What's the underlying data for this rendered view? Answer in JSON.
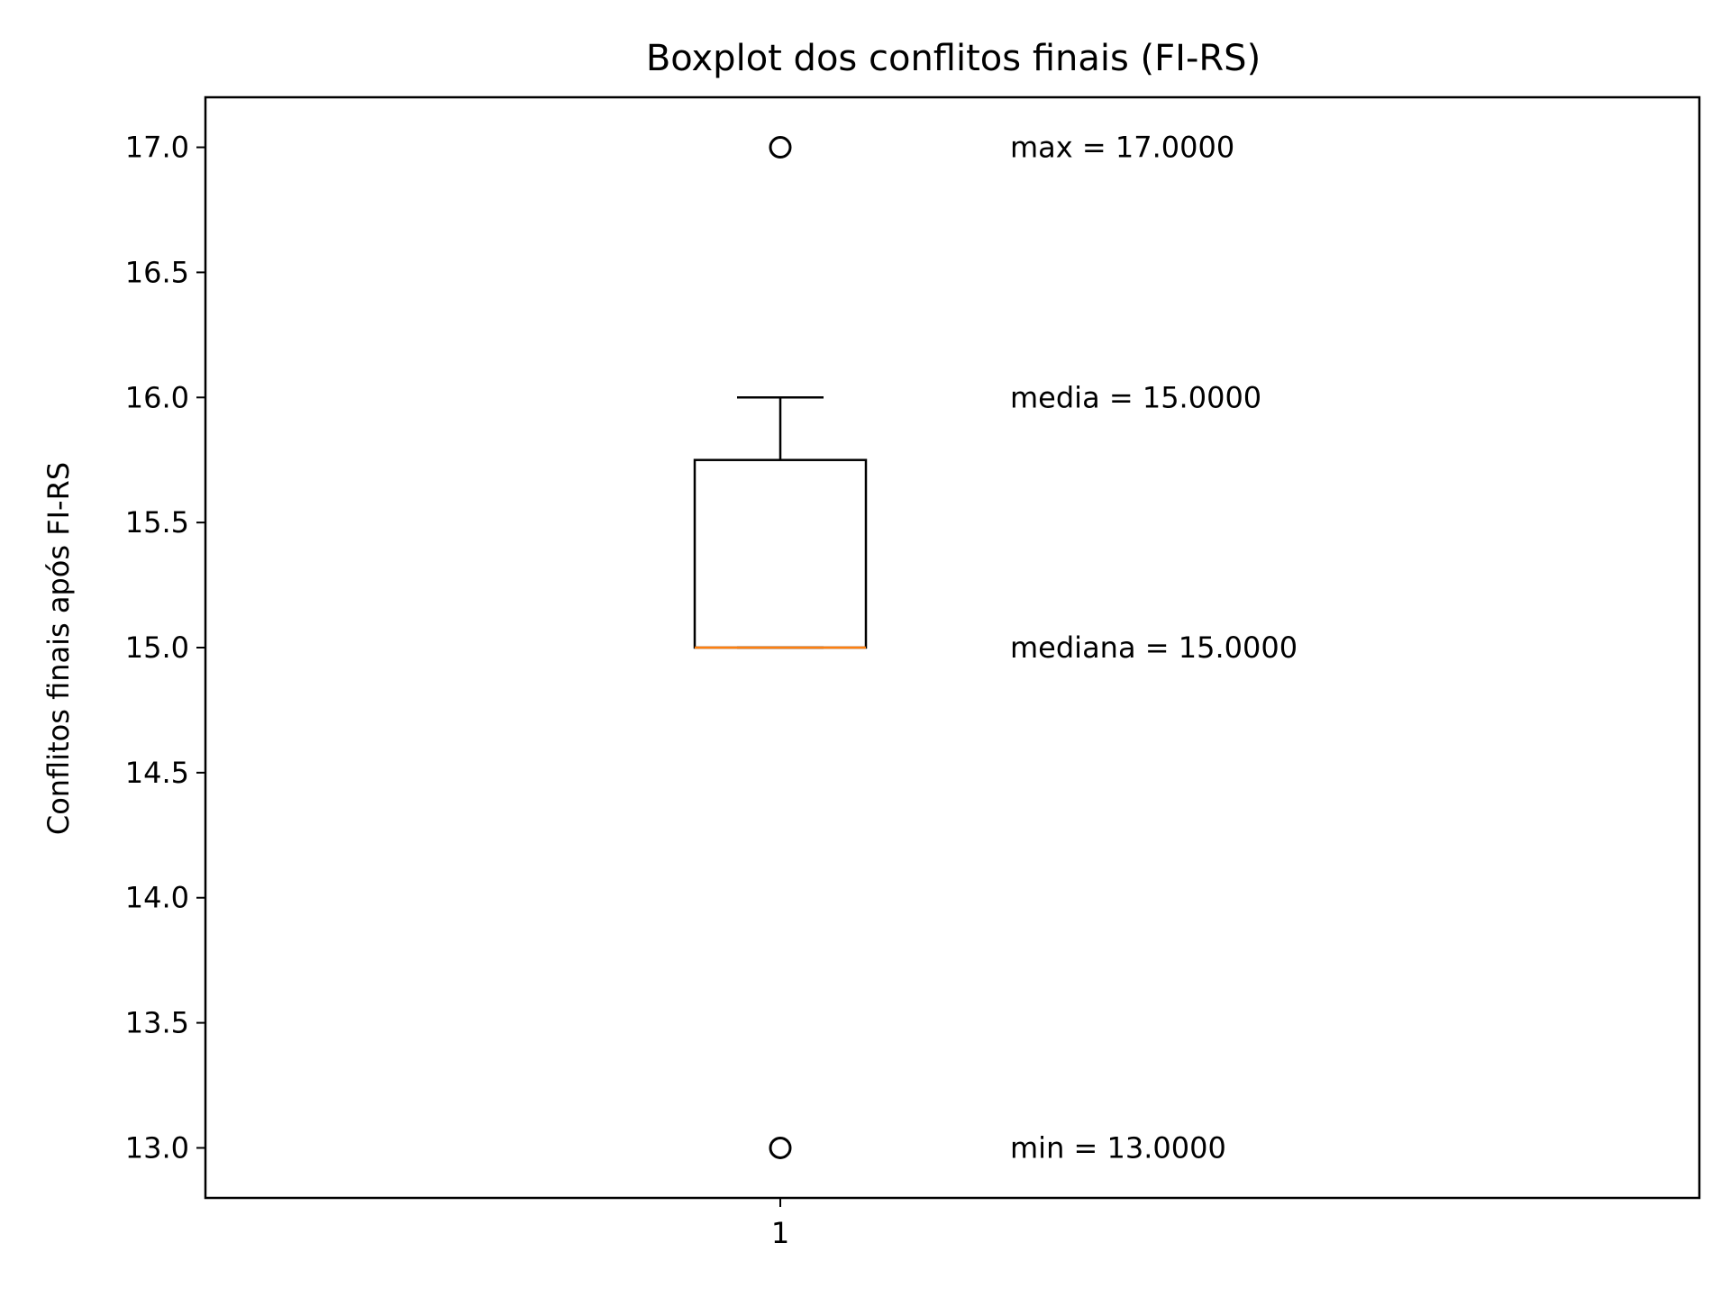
{
  "chart_data": {
    "type": "box",
    "title": "Boxplot dos conflitos finais (FI-RS)",
    "xlabel": "",
    "ylabel": "Conflitos finais após FI-RS",
    "ylim": [
      12.8,
      17.2
    ],
    "yticks": [
      13.0,
      13.5,
      14.0,
      14.5,
      15.0,
      15.5,
      16.0,
      16.5,
      17.0
    ],
    "categories": [
      "1"
    ],
    "box": {
      "q1": 15.0,
      "median": 15.0,
      "q3": 15.75,
      "whisker_low": 15.0,
      "whisker_high": 16.0,
      "outliers": [
        17.0,
        13.0
      ]
    },
    "annotations": [
      {
        "text": "max = 17.0000",
        "y": 17.0
      },
      {
        "text": "media = 15.0000",
        "y": 16.0
      },
      {
        "text": "mediana = 15.0000",
        "y": 15.0
      },
      {
        "text": "min = 13.0000",
        "y": 13.0
      }
    ],
    "grid": false,
    "colors": {
      "box": "#000000",
      "median": "#ff7f0e",
      "axes": "#000000"
    }
  }
}
